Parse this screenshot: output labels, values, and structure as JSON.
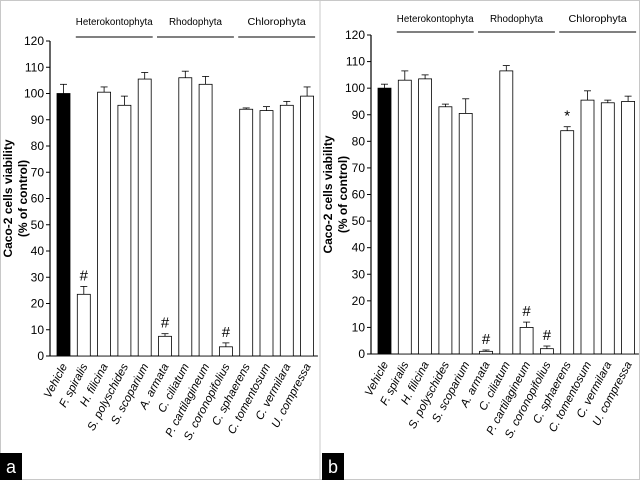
{
  "chart_data": [
    {
      "type": "bar",
      "panel_label": "a",
      "ylabel_line1": "Caco-2 cells viability",
      "ylabel_line2": "(% of control)",
      "ylim": [
        0,
        120
      ],
      "yticks": [
        0,
        10,
        20,
        30,
        40,
        50,
        60,
        70,
        80,
        90,
        100,
        110,
        120
      ],
      "categories": [
        "Vehicle",
        "F. spiralis",
        "H. filicina",
        "S. polyschides",
        "S. scoparium",
        "A. armata",
        "C. ciliatum",
        "P. cartilagineum",
        "S. coronopifolius",
        "C. sphaerens",
        "C. tomentosum",
        "C. vermilara",
        "U. compressa"
      ],
      "values": [
        100,
        23.5,
        100.5,
        95.5,
        105.5,
        7.5,
        106,
        103.5,
        3.5,
        94,
        93.5,
        95.5,
        99
      ],
      "errors": [
        3.5,
        3,
        2,
        3.5,
        2.5,
        1,
        2.5,
        3,
        1.5,
        0.5,
        1.5,
        1.5,
        3.5
      ],
      "annotations": [
        "",
        "#",
        "",
        "",
        "",
        "#",
        "",
        "",
        "#",
        "",
        "",
        "",
        ""
      ],
      "groups": [
        {
          "name": "Heterokontophyta",
          "start": 1,
          "end": 4
        },
        {
          "name": "Rhodophyta",
          "start": 5,
          "end": 8
        },
        {
          "name": "Chlorophyta",
          "start": 9,
          "end": 12
        }
      ],
      "colors": {
        "vehicle": "#000000",
        "bar": "#ffffff",
        "stroke": "#000000"
      }
    },
    {
      "type": "bar",
      "panel_label": "b",
      "ylabel_line1": "Caco-2 cells viability",
      "ylabel_line2": "(% of control)",
      "ylim": [
        0,
        120
      ],
      "yticks": [
        0,
        10,
        20,
        30,
        40,
        50,
        60,
        70,
        80,
        90,
        100,
        110,
        120
      ],
      "categories": [
        "Vehicle",
        "F. spiralis",
        "H. filicina",
        "S. polyschides",
        "S. scoparium",
        "A. armata",
        "C. ciliatum",
        "P. cartilagineum",
        "S. coronopifolius",
        "C. sphaerens",
        "C. tomentosum",
        "C. vermilara",
        "U. compressa"
      ],
      "values": [
        100,
        103,
        103.5,
        93,
        90.5,
        1,
        106.5,
        10,
        2,
        84,
        95.5,
        94.5,
        95
      ],
      "errors": [
        1.5,
        3.5,
        1.5,
        1,
        5.5,
        0.5,
        2,
        2,
        1,
        1.5,
        3.5,
        1,
        2
      ],
      "annotations": [
        "",
        "",
        "",
        "",
        "",
        "#",
        "",
        "#",
        "#",
        "*",
        "",
        "",
        ""
      ],
      "groups": [
        {
          "name": "Heterokontophyta",
          "start": 1,
          "end": 4
        },
        {
          "name": "Rhodophyta",
          "start": 5,
          "end": 8
        },
        {
          "name": "Chlorophyta",
          "start": 9,
          "end": 12
        }
      ],
      "colors": {
        "vehicle": "#000000",
        "bar": "#ffffff",
        "stroke": "#000000"
      }
    }
  ]
}
